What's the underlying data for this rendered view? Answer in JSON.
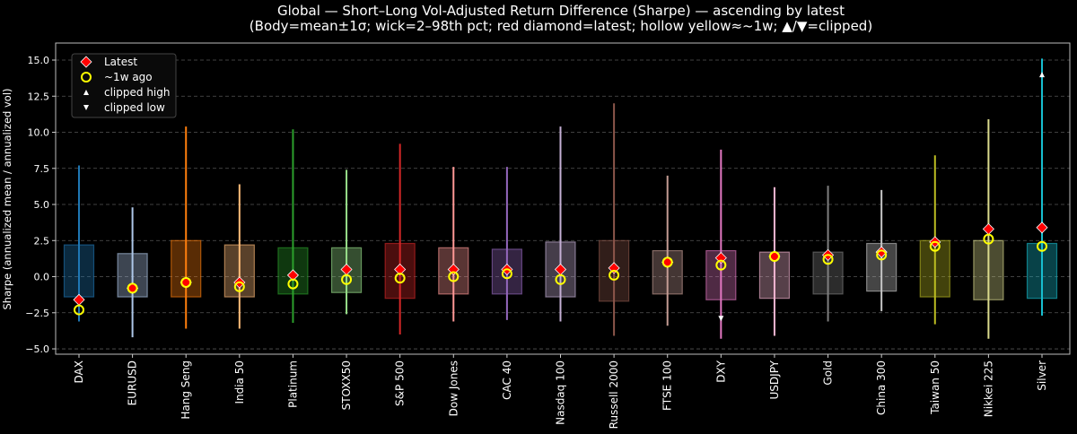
{
  "chart_data": {
    "type": "box-range",
    "title": "Global — Short–Long Vol-Adjusted Return Difference (Sharpe) — ascending by latest",
    "subtitle": "(Body=mean±1σ; wick=2–98th pct; red diamond=latest; hollow yellow≈~1w; ▲/▼=clipped)",
    "xlabel": "",
    "ylabel": "Sharpe (annualized mean / annualized vol)",
    "ylim": [
      -5.37,
      16.18
    ],
    "yticks": [
      -5,
      -2.5,
      0,
      2.5,
      5,
      7.5,
      10,
      12.5,
      15
    ],
    "ytick_labels": [
      "−5.0",
      "−2.5",
      "0.0",
      "2.5",
      "5.0",
      "7.5",
      "10.0",
      "12.5",
      "15.0"
    ],
    "grid": "horizontal dashed",
    "legend": {
      "placement": "top-left",
      "entries": [
        "Latest",
        "~1w ago",
        "clipped high",
        "clipped low"
      ]
    },
    "categories": [
      "DAX",
      "EURUSD",
      "Hang Seng",
      "India 50",
      "Platinum",
      "STOXX50",
      "S&P 500",
      "Dow Jones",
      "CAC 40",
      "Nasdaq 100",
      "Russell 2000",
      "FTSE 100",
      "DXY",
      "USDJPY",
      "Gold",
      "China 300",
      "Taiwan 50",
      "Nikkei 225",
      "Silver"
    ],
    "colors": [
      "#1f77b4",
      "#aec7e8",
      "#ff7f0e",
      "#ffbb78",
      "#2ca02c",
      "#98df8a",
      "#d62728",
      "#ff9896",
      "#9467bd",
      "#c5b0d5",
      "#8c564b",
      "#c49c94",
      "#e377c2",
      "#f7b6d2",
      "#7f7f7f",
      "#c7c7c7",
      "#bcbd22",
      "#dbdb8d",
      "#17becf"
    ],
    "body_high": [
      2.2,
      1.6,
      2.5,
      2.2,
      2.0,
      2.0,
      2.3,
      2.0,
      1.9,
      2.4,
      2.5,
      1.8,
      1.8,
      1.7,
      1.7,
      2.3,
      2.5,
      2.5,
      2.3
    ],
    "body_low": [
      -1.4,
      -1.4,
      -1.4,
      -1.4,
      -1.2,
      -1.1,
      -1.5,
      -1.2,
      -1.2,
      -1.4,
      -1.7,
      -1.2,
      -1.6,
      -1.5,
      -1.2,
      -1.0,
      -1.4,
      -1.6,
      -1.5
    ],
    "wick_high": [
      7.7,
      4.8,
      10.4,
      6.4,
      10.2,
      7.4,
      9.2,
      7.6,
      7.6,
      10.4,
      12.0,
      7.0,
      8.8,
      6.2,
      6.3,
      6.0,
      8.4,
      10.9,
      15.1
    ],
    "wick_low": [
      -3.1,
      -4.2,
      -3.6,
      -3.6,
      -3.2,
      -2.6,
      -4.0,
      -3.1,
      -3.0,
      -3.1,
      -4.1,
      -3.4,
      -4.3,
      -4.1,
      -3.1,
      -2.4,
      -3.3,
      -4.3,
      -2.7
    ],
    "latest": [
      -1.6,
      -0.8,
      -0.4,
      -0.4,
      0.1,
      0.5,
      0.5,
      0.5,
      0.5,
      0.5,
      0.6,
      1.0,
      1.3,
      1.4,
      1.5,
      1.7,
      2.4,
      3.3,
      3.4
    ],
    "week_ago": [
      -2.3,
      -0.8,
      -0.4,
      -0.7,
      -0.5,
      -0.2,
      -0.1,
      0.0,
      0.2,
      -0.2,
      0.1,
      1.0,
      0.8,
      1.4,
      1.2,
      1.5,
      2.1,
      2.6,
      2.1
    ],
    "clipped_high": [
      null,
      null,
      null,
      null,
      null,
      null,
      null,
      null,
      null,
      null,
      null,
      null,
      null,
      null,
      null,
      null,
      null,
      null,
      14.0
    ],
    "clipped_low": [
      null,
      null,
      null,
      null,
      null,
      null,
      null,
      null,
      null,
      null,
      null,
      null,
      -2.9,
      null,
      null,
      null,
      null,
      null,
      null
    ]
  }
}
